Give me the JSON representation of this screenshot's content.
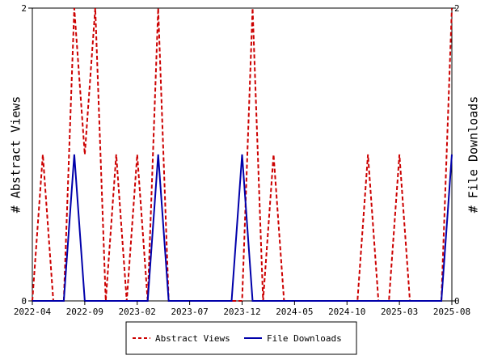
{
  "chart_data": {
    "type": "line",
    "y_left_label": "# Abstract Views",
    "y_right_label": "# File Downloads",
    "ylim": [
      0,
      2
    ],
    "y_ticks": [
      0,
      2
    ],
    "xlim": [
      "2022-04",
      "2025-08"
    ],
    "x_tick_labels": [
      "2022-04",
      "2022-09",
      "2023-02",
      "2023-07",
      "2023-12",
      "2024-05",
      "2024-10",
      "2025-03",
      "2025-08"
    ],
    "categories": [
      "2022-04",
      "2022-05",
      "2022-06",
      "2022-07",
      "2022-08",
      "2022-09",
      "2022-10",
      "2022-11",
      "2022-12",
      "2023-01",
      "2023-02",
      "2023-03",
      "2023-04",
      "2023-05",
      "2023-06",
      "2023-07",
      "2023-08",
      "2023-09",
      "2023-10",
      "2023-11",
      "2023-12",
      "2024-01",
      "2024-02",
      "2024-03",
      "2024-04",
      "2024-05",
      "2024-06",
      "2024-07",
      "2024-08",
      "2024-09",
      "2024-10",
      "2024-11",
      "2024-12",
      "2025-01",
      "2025-02",
      "2025-03",
      "2025-04",
      "2025-05",
      "2025-06",
      "2025-07",
      "2025-08"
    ],
    "series": [
      {
        "name": "Abstract Views",
        "color": "#cc0000",
        "dash": "dashed",
        "axis": "left",
        "values": [
          0,
          1,
          0,
          0,
          2,
          1,
          2,
          0,
          1,
          0,
          1,
          0,
          2,
          0,
          0,
          0,
          0,
          0,
          0,
          0,
          0,
          2,
          0,
          1,
          0,
          0,
          0,
          0,
          0,
          0,
          0,
          0,
          1,
          0,
          0,
          1,
          0,
          0,
          0,
          0,
          2
        ]
      },
      {
        "name": "File Downloads",
        "color": "#0000aa",
        "dash": "solid",
        "axis": "right",
        "values": [
          0,
          0,
          0,
          0,
          1,
          0,
          0,
          0,
          0,
          0,
          0,
          0,
          1,
          0,
          0,
          0,
          0,
          0,
          0,
          0,
          1,
          0,
          0,
          0,
          0,
          0,
          0,
          0,
          0,
          0,
          0,
          0,
          0,
          0,
          0,
          0,
          0,
          0,
          0,
          0,
          1
        ]
      }
    ],
    "grid": false,
    "legend_position": "bottom-center"
  }
}
